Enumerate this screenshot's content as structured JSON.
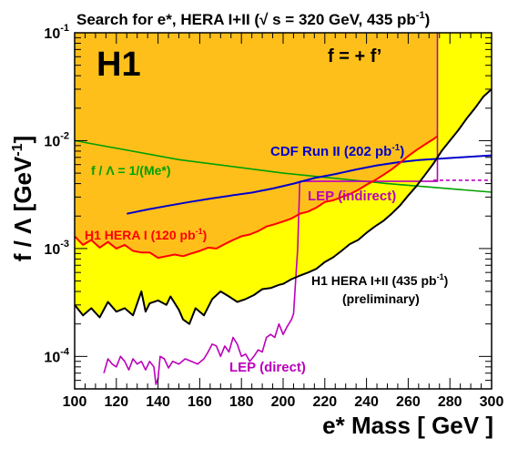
{
  "chart_data": {
    "type": "line",
    "title": "Search for e*, HERA I+II (√ s = 320 GeV, 435 pb⁻¹)",
    "title_parts": {
      "main": "Search for e*, HERA I+II (√ s = 320 GeV, 435 pb",
      "sup": "-1",
      "close": ")"
    },
    "xlabel": "e* Mass [ GeV ]",
    "ylabel": "f / Λ [GeV⁻¹]",
    "ylabel_parts": {
      "main": "f / Λ [GeV",
      "sup": "-1",
      "close": "]"
    },
    "xlim": [
      100,
      300
    ],
    "ylim": [
      5e-05,
      0.1
    ],
    "yscale": "log",
    "x_ticks": [
      100,
      120,
      140,
      160,
      180,
      200,
      220,
      240,
      260,
      280,
      300
    ],
    "y_ticks": [
      {
        "value": 0.1,
        "base": "10",
        "exp": "-1"
      },
      {
        "value": 0.01,
        "base": "10",
        "exp": "-2"
      },
      {
        "value": 0.001,
        "base": "10",
        "exp": "-3"
      },
      {
        "value": 0.0001,
        "base": "10",
        "exp": "-4"
      }
    ],
    "grid": false,
    "colors": {
      "h1_hera_1_2_region": "#ffff00",
      "h1_hera_1_region": "#ffbf1a",
      "h1_hera_1_line": "#ff0000",
      "h1_hera_1_2_line": "#000000",
      "cdf_line": "#0000cc",
      "lep_line": "#bb00bb",
      "model_line": "#00a000"
    },
    "labels": {
      "experiment": "H1",
      "coupling": "f = + f’",
      "model_main": "f / Λ = 1/(Me*)",
      "cdf": {
        "main": "CDF Run II (202 pb",
        "sup": "-1",
        "close": ")"
      },
      "lep_indirect": "LEP (indirect)",
      "h1_hera_1": {
        "main": "H1 HERA I (120 pb",
        "sup": "-1",
        "close": ")"
      },
      "h1_hera_1_2": {
        "main": "H1 HERA I+II (435 pb",
        "sup": "-1",
        "close": ")"
      },
      "preliminary": "(preliminary)",
      "lep_direct": "LEP (direct)"
    },
    "series": [
      {
        "name": "H1 HERA I+II (435 pb-1) (preliminary)",
        "style": "line+fill",
        "values": [
          [
            100,
            0.0003
          ],
          [
            104,
            0.00024
          ],
          [
            108,
            0.00028
          ],
          [
            112,
            0.00023
          ],
          [
            116,
            0.00032
          ],
          [
            120,
            0.00026
          ],
          [
            124,
            0.00028
          ],
          [
            128,
            0.00024
          ],
          [
            132,
            0.0004
          ],
          [
            134,
            0.00026
          ],
          [
            136,
            0.00031
          ],
          [
            140,
            0.00033
          ],
          [
            144,
            0.0003
          ],
          [
            146,
            0.00036
          ],
          [
            150,
            0.00027
          ],
          [
            152,
            0.00022
          ],
          [
            155,
            0.0002
          ],
          [
            158,
            0.00028
          ],
          [
            162,
            0.00024
          ],
          [
            166,
            0.00034
          ],
          [
            170,
            0.0004
          ],
          [
            174,
            0.00036
          ],
          [
            178,
            0.00032
          ],
          [
            182,
            0.00034
          ],
          [
            186,
            0.00037
          ],
          [
            190,
            0.00042
          ],
          [
            194,
            0.00043
          ],
          [
            198,
            0.00046
          ],
          [
            200,
            0.00047
          ],
          [
            204,
            0.00052
          ],
          [
            208,
            0.00056
          ],
          [
            212,
            0.0006
          ],
          [
            216,
            0.00065
          ],
          [
            220,
            0.00075
          ],
          [
            224,
            0.00083
          ],
          [
            228,
            0.00095
          ],
          [
            232,
            0.0011
          ],
          [
            236,
            0.0012
          ],
          [
            240,
            0.0014
          ],
          [
            244,
            0.0016
          ],
          [
            248,
            0.0018
          ],
          [
            252,
            0.0021
          ],
          [
            256,
            0.0025
          ],
          [
            260,
            0.0031
          ],
          [
            264,
            0.0038
          ],
          [
            268,
            0.0048
          ],
          [
            272,
            0.0061
          ],
          [
            276,
            0.008
          ],
          [
            280,
            0.01
          ],
          [
            284,
            0.0125
          ],
          [
            288,
            0.016
          ],
          [
            292,
            0.02
          ],
          [
            296,
            0.0255
          ],
          [
            300,
            0.03
          ]
        ]
      },
      {
        "name": "H1 HERA I (120 pb-1)",
        "style": "line+fill",
        "values": [
          [
            100,
            0.0013
          ],
          [
            104,
            0.00108
          ],
          [
            108,
            0.0012
          ],
          [
            112,
            0.00102
          ],
          [
            116,
            0.00115
          ],
          [
            120,
            0.001
          ],
          [
            124,
            0.00108
          ],
          [
            128,
            0.00095
          ],
          [
            132,
            0.00092
          ],
          [
            136,
            0.00092
          ],
          [
            140,
            0.00082
          ],
          [
            144,
            0.00085
          ],
          [
            148,
            0.00088
          ],
          [
            152,
            0.00085
          ],
          [
            156,
            0.0009
          ],
          [
            160,
            0.00095
          ],
          [
            164,
            0.00102
          ],
          [
            168,
            0.001
          ],
          [
            172,
            0.0011
          ],
          [
            176,
            0.0012
          ],
          [
            180,
            0.0013
          ],
          [
            184,
            0.00135
          ],
          [
            188,
            0.00145
          ],
          [
            192,
            0.0016
          ],
          [
            196,
            0.00168
          ],
          [
            200,
            0.00178
          ],
          [
            204,
            0.0019
          ],
          [
            208,
            0.0021
          ],
          [
            212,
            0.0022
          ],
          [
            216,
            0.0024
          ],
          [
            220,
            0.0027
          ],
          [
            224,
            0.0028
          ],
          [
            228,
            0.003
          ],
          [
            232,
            0.0032
          ],
          [
            236,
            0.0035
          ],
          [
            240,
            0.0039
          ],
          [
            244,
            0.0043
          ],
          [
            248,
            0.0048
          ],
          [
            252,
            0.0054
          ],
          [
            256,
            0.0062
          ],
          [
            260,
            0.0072
          ],
          [
            264,
            0.0082
          ],
          [
            268,
            0.0092
          ],
          [
            272,
            0.0103
          ],
          [
            274,
            0.011
          ]
        ]
      },
      {
        "name": "CDF Run II (202 pb-1)",
        "style": "line",
        "values": [
          [
            125,
            0.0021
          ],
          [
            135,
            0.0023
          ],
          [
            145,
            0.0025
          ],
          [
            155,
            0.0027
          ],
          [
            165,
            0.0029
          ],
          [
            175,
            0.0031
          ],
          [
            185,
            0.0033
          ],
          [
            195,
            0.0036
          ],
          [
            205,
            0.004
          ],
          [
            215,
            0.0045
          ],
          [
            225,
            0.0049
          ],
          [
            235,
            0.0054
          ],
          [
            245,
            0.0059
          ],
          [
            255,
            0.0063
          ],
          [
            265,
            0.0066
          ],
          [
            275,
            0.0068
          ],
          [
            285,
            0.007
          ],
          [
            300,
            0.0073
          ]
        ]
      },
      {
        "name": "f / Λ = 1/(Me*)",
        "style": "line",
        "values": [
          [
            100,
            0.01
          ],
          [
            150,
            0.00667
          ],
          [
            200,
            0.005
          ],
          [
            250,
            0.004
          ],
          [
            300,
            0.00333
          ]
        ]
      },
      {
        "name": "LEP (direct)",
        "style": "line",
        "values": [
          [
            114,
            7e-05
          ],
          [
            116,
            9.5e-05
          ],
          [
            118,
            8.5e-05
          ],
          [
            120,
            8e-05
          ],
          [
            122,
            0.0001
          ],
          [
            124,
            9e-05
          ],
          [
            126,
            7.5e-05
          ],
          [
            128,
            9.5e-05
          ],
          [
            130,
            8.5e-05
          ],
          [
            132,
            9e-05
          ],
          [
            134,
            7.5e-05
          ],
          [
            136,
            9e-05
          ],
          [
            138,
            8e-05
          ],
          [
            139,
            5.5e-05
          ],
          [
            140,
            6.2e-05
          ],
          [
            141,
            0.0001
          ],
          [
            143,
            9.5e-05
          ],
          [
            145,
            7.8e-05
          ],
          [
            147,
            9e-05
          ],
          [
            150,
            8.5e-05
          ],
          [
            153,
            9.5e-05
          ],
          [
            156,
            9e-05
          ],
          [
            159,
            8.5e-05
          ],
          [
            162,
            9.5e-05
          ],
          [
            164,
            0.00011
          ],
          [
            166,
            0.00013
          ],
          [
            168,
            0.000125
          ],
          [
            170,
            0.0001
          ],
          [
            172,
            0.000125
          ],
          [
            174,
            0.00011
          ],
          [
            176,
            0.00015
          ],
          [
            178,
            0.00013
          ],
          [
            180,
            0.0001
          ],
          [
            182,
            0.000105
          ],
          [
            184,
            9e-05
          ],
          [
            186,
            0.0001
          ],
          [
            188,
            0.000115
          ],
          [
            190,
            0.00011
          ],
          [
            192,
            0.00015
          ],
          [
            194,
            0.00016
          ],
          [
            196,
            0.00015
          ],
          [
            198,
            0.0002
          ],
          [
            200,
            0.00016
          ],
          [
            202,
            0.00019
          ],
          [
            204,
            0.00022
          ],
          [
            205,
            0.00025
          ],
          [
            206,
            0.0005
          ],
          [
            207,
            0.001
          ],
          [
            208,
            0.0042
          ]
        ]
      },
      {
        "name": "LEP (indirect)",
        "style": "line",
        "values": [
          [
            208,
            0.0042
          ],
          [
            228,
            0.0042
          ],
          [
            248,
            0.0042
          ],
          [
            268,
            0.0042
          ],
          [
            274,
            0.0042
          ],
          [
            274,
            0.1
          ],
          [
            274,
            0.011
          ]
        ]
      },
      {
        "name": "LEP (indirect) extension",
        "style": "dashed",
        "values": [
          [
            272,
            0.0043
          ],
          [
            300,
            0.0043
          ]
        ]
      }
    ]
  }
}
